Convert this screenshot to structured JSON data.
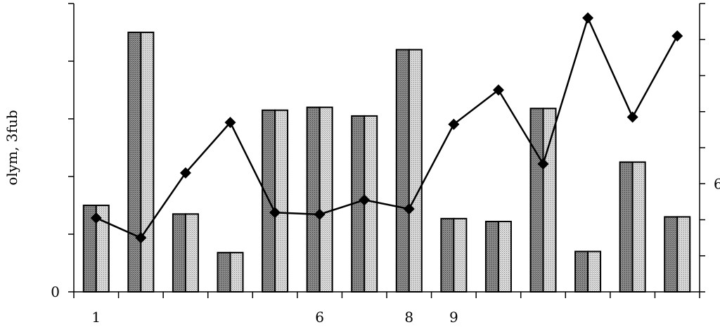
{
  "chart_data": {
    "type": "bar",
    "categories": [
      "1",
      "",
      "",
      "",
      "",
      "6",
      "",
      "8",
      "9",
      "",
      "",
      "",
      "",
      ""
    ],
    "ylabel": "olym,   3fub",
    "y_tick_labels": [
      {
        "value": 0,
        "label": "0"
      }
    ],
    "y2_tick_labels": [
      {
        "value": 6,
        "label": "6"
      }
    ],
    "grid": false,
    "ylim": [
      0,
      5
    ],
    "y2lim": [
      3,
      11
    ],
    "series": [
      {
        "values": [
          1.5,
          4.5,
          1.35,
          0.68,
          3.15,
          3.2,
          3.05,
          4.2,
          1.27,
          1.22,
          3.18,
          0.7,
          2.25,
          1.3
        ]
      },
      {
        "values": [
          1.5,
          4.5,
          1.35,
          0.68,
          3.15,
          3.2,
          3.05,
          4.2,
          1.27,
          1.22,
          3.18,
          0.7,
          2.25,
          1.3
        ]
      },
      {
        "type": "line",
        "axis": "right",
        "values": [
          5.05,
          4.5,
          6.3,
          7.7,
          5.2,
          5.15,
          5.55,
          5.3,
          7.65,
          8.6,
          6.55,
          10.6,
          7.85,
          10.1
        ]
      }
    ]
  }
}
